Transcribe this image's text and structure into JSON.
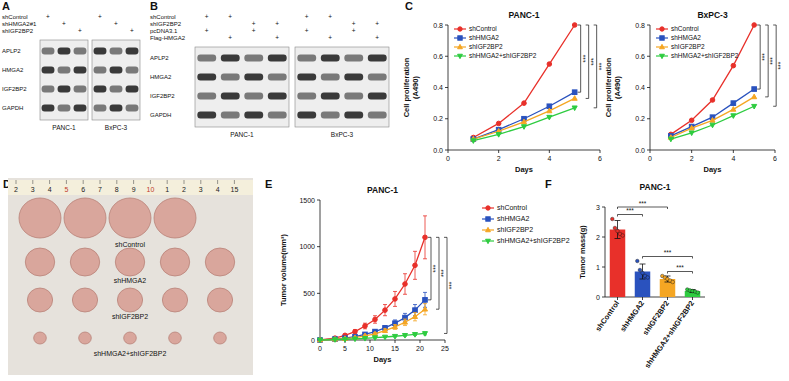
{
  "panel_labels": [
    "A",
    "B",
    "C",
    "D",
    "E",
    "F"
  ],
  "blots": [
    {
      "conditions": [
        {
          "label": "shControl",
          "lanes": [
            "+",
            null,
            null,
            "+",
            null,
            null
          ]
        },
        {
          "label": "shHMGA2#1",
          "lanes": [
            null,
            "+",
            null,
            null,
            "+",
            null
          ]
        },
        {
          "label": "shIGF2BP2",
          "lanes": [
            null,
            null,
            "+",
            null,
            null,
            "+"
          ]
        }
      ],
      "proteins": [
        "APLP2",
        "HMGA2",
        "IGF2BP2",
        "GAPDH"
      ],
      "cell_lines": [
        "PANC-1",
        "BxPC-3"
      ]
    },
    {
      "conditions": [
        {
          "label": "shControl",
          "lanes": [
            "+",
            "+",
            null,
            null,
            "+",
            "+",
            null,
            null
          ]
        },
        {
          "label": "shIGF2BP2",
          "lanes": [
            null,
            null,
            "+",
            "+",
            null,
            null,
            "+",
            "+"
          ]
        },
        {
          "label": "pcDNA3.1",
          "lanes": [
            "+",
            null,
            "+",
            null,
            "+",
            null,
            "+",
            null
          ]
        },
        {
          "label": "Flag-HMGA2",
          "lanes": [
            null,
            "+",
            null,
            "+",
            null,
            "+",
            null,
            "+"
          ]
        }
      ],
      "proteins": [
        "APLP2",
        "HMGA2",
        "IGF2BP2",
        "GAPDH"
      ],
      "cell_lines": [
        "PANC-1",
        "BxPC-3"
      ]
    }
  ],
  "photo": {
    "ruler": [
      "2",
      "3",
      "4",
      "5",
      "6",
      "7",
      "8",
      "9",
      "10",
      "1",
      "2",
      "3",
      "4",
      "15"
    ],
    "rows": [
      "shControl",
      "shHMGA2",
      "shIGF2BP2",
      "shHMGA2+shIGF2BP2"
    ]
  },
  "chart_data": [
    {
      "type": "line",
      "title": "PANC-1",
      "xlabel": "Days",
      "ylabel": [
        "Cell proliferation",
        "(A490)"
      ],
      "x": [
        1,
        2,
        3,
        4,
        5
      ],
      "xlim": [
        0,
        6
      ],
      "xticks": [
        0,
        2,
        4,
        6
      ],
      "ylim": [
        0,
        0.8
      ],
      "yticks": [
        {
          "value": 0,
          "label": "0.0"
        },
        0.2,
        0.4,
        0.6,
        0.8
      ],
      "grid": false,
      "legend": "upper left",
      "annotations": [
        "***",
        "***",
        "***"
      ],
      "series": [
        {
          "name": "shControl",
          "color": "#e8302a",
          "marker": "circle",
          "values": [
            0.08,
            0.17,
            0.3,
            0.55,
            0.8
          ]
        },
        {
          "name": "shHMGA2",
          "color": "#2a52be",
          "marker": "square",
          "values": [
            0.07,
            0.13,
            0.2,
            0.28,
            0.37
          ]
        },
        {
          "name": "shIGF2BP2",
          "color": "#f5a623",
          "marker": "triangle",
          "values": [
            0.07,
            0.12,
            0.18,
            0.25,
            0.33
          ]
        },
        {
          "name": "shHMGA2+shIGF2BP2",
          "color": "#2ecc40",
          "marker": "triangle-down",
          "values": [
            0.06,
            0.1,
            0.15,
            0.21,
            0.27
          ]
        }
      ]
    },
    {
      "type": "line",
      "title": "BxPC-3",
      "xlabel": "Days",
      "ylabel": [
        "Cell proliferation",
        "(A490)"
      ],
      "x": [
        1,
        2,
        3,
        4,
        5
      ],
      "xlim": [
        0,
        6
      ],
      "xticks": [
        0,
        2,
        4,
        6
      ],
      "ylim": [
        0,
        0.8
      ],
      "yticks": [
        {
          "value": 0,
          "label": "0.0"
        },
        0.2,
        0.4,
        0.6,
        0.8
      ],
      "grid": false,
      "legend": "upper left",
      "annotations": [
        "***",
        "***",
        "***"
      ],
      "series": [
        {
          "name": "shControl",
          "color": "#e8302a",
          "marker": "circle",
          "values": [
            0.1,
            0.19,
            0.32,
            0.54,
            0.8
          ]
        },
        {
          "name": "shHMGA2",
          "color": "#2a52be",
          "marker": "square",
          "values": [
            0.09,
            0.15,
            0.21,
            0.3,
            0.39
          ]
        },
        {
          "name": "shIGF2BP2",
          "color": "#f5a623",
          "marker": "triangle",
          "values": [
            0.08,
            0.14,
            0.19,
            0.26,
            0.34
          ]
        },
        {
          "name": "shHMGA2+shIGF2BP2",
          "color": "#2ecc40",
          "marker": "triangle-down",
          "values": [
            0.07,
            0.11,
            0.16,
            0.22,
            0.28
          ]
        }
      ]
    },
    {
      "type": "line",
      "title": "PANC-1",
      "xlabel": "Days",
      "ylabel": "Tumor volume(mm³)",
      "x": [
        0,
        3,
        5,
        7,
        9,
        11,
        13,
        15,
        17,
        19,
        21
      ],
      "xlim": [
        0,
        25
      ],
      "xticks": [
        0,
        5,
        10,
        15,
        20,
        25
      ],
      "ylim": [
        0,
        1500
      ],
      "yticks": [
        0,
        500,
        1000,
        1500
      ],
      "grid": false,
      "legend": "right",
      "annotations": [
        "***",
        "***",
        "***"
      ],
      "series": [
        {
          "name": "shControl",
          "color": "#e8302a",
          "marker": "circle",
          "values": [
            0,
            20,
            50,
            90,
            150,
            220,
            320,
            440,
            600,
            800,
            1100
          ],
          "errors": [
            0,
            5,
            10,
            20,
            30,
            40,
            60,
            80,
            110,
            150,
            230
          ]
        },
        {
          "name": "shHMGA2",
          "color": "#2a52be",
          "marker": "square",
          "values": [
            0,
            10,
            20,
            35,
            60,
            90,
            130,
            180,
            240,
            320,
            430
          ],
          "errors": [
            0,
            3,
            5,
            8,
            12,
            18,
            25,
            35,
            45,
            60,
            80
          ]
        },
        {
          "name": "shIGF2BP2",
          "color": "#f5a623",
          "marker": "triangle",
          "values": [
            0,
            8,
            15,
            25,
            45,
            65,
            100,
            140,
            190,
            250,
            330
          ],
          "errors": [
            0,
            2,
            4,
            6,
            10,
            14,
            20,
            25,
            35,
            45,
            60
          ]
        },
        {
          "name": "shHMGA2+shIGF2BP2",
          "color": "#2ecc40",
          "marker": "triangle-down",
          "values": [
            0,
            5,
            8,
            12,
            18,
            25,
            32,
            40,
            50,
            60,
            70
          ],
          "errors": [
            0,
            1,
            2,
            3,
            4,
            5,
            6,
            8,
            10,
            12,
            15
          ]
        }
      ]
    },
    {
      "type": "bar",
      "title": "PANC-1",
      "ylabel": "Tumor mass(g)",
      "categories": [
        "shControl",
        "shHMGA2",
        "shIGF2BP2",
        "shHMGA2+shIGF2BP2"
      ],
      "values": [
        2.25,
        0.85,
        0.6,
        0.2
      ],
      "errors": [
        0.3,
        0.25,
        0.1,
        0.05
      ],
      "points": [
        [
          2.6,
          2.3,
          2.2,
          2.1,
          2.05
        ],
        [
          1.2,
          0.9,
          0.8,
          0.7,
          0.65
        ],
        [
          0.7,
          0.65,
          0.6,
          0.55,
          0.5
        ],
        [
          0.25,
          0.22,
          0.2,
          0.18,
          0.15
        ]
      ],
      "colors": [
        "#e8302a",
        "#2a52be",
        "#f5a623",
        "#2ecc40"
      ],
      "ylim": [
        0,
        3
      ],
      "yticks": [
        0,
        1,
        2,
        3
      ],
      "grid": false,
      "comparisons": [
        {
          "pair": [
            0,
            1
          ],
          "label": "***"
        },
        {
          "pair": [
            0,
            2
          ],
          "label": "***"
        },
        {
          "pair": [
            1,
            3
          ],
          "label": "***"
        },
        {
          "pair": [
            2,
            3
          ],
          "label": "***"
        }
      ]
    }
  ]
}
